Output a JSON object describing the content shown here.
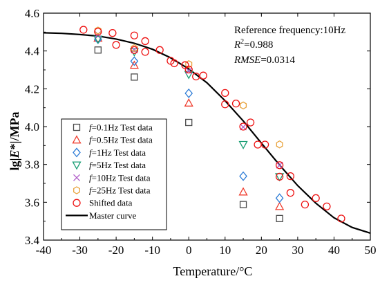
{
  "chart_data": {
    "type": "scatter",
    "xlabel": "Temperature/°C",
    "ylabel_parts": [
      "lg|",
      "E",
      "*|/MPa"
    ],
    "xlim": [
      -40,
      50
    ],
    "ylim": [
      3.4,
      4.6
    ],
    "xticks": [
      -40,
      -30,
      -20,
      -10,
      0,
      10,
      20,
      30,
      40,
      50
    ],
    "yticks": [
      3.4,
      3.6,
      3.8,
      4.0,
      4.2,
      4.4,
      4.6
    ],
    "xtick_labels": [
      "-40",
      "-30",
      "-20",
      "-10",
      "0",
      "10",
      "20",
      "30",
      "40",
      "50"
    ],
    "ytick_labels": [
      "3.4",
      "3.6",
      "3.8",
      "4.0",
      "4.2",
      "4.4",
      "4.6"
    ],
    "annotations": {
      "line1": "Reference frequency:10Hz",
      "line2_pre": "R",
      "line2_sup": "2",
      "line2_post": "=0.988",
      "line3_pre": "RMSE",
      "line3_post": "=0.0314"
    },
    "series": [
      {
        "name_pre": "f",
        "name_post": "=0.1Hz Test data",
        "marker": "square",
        "color": "#4a4a4a",
        "points": [
          [
            -25,
            4.405
          ],
          [
            -15,
            4.262
          ],
          [
            0,
            4.022
          ],
          [
            15,
            3.588
          ],
          [
            25,
            3.514
          ]
        ]
      },
      {
        "name_pre": "f",
        "name_post": "=0.5Hz Test data",
        "marker": "triangle-up",
        "color": "#ef3b2c",
        "points": [
          [
            -25,
            4.468
          ],
          [
            -15,
            4.325
          ],
          [
            0,
            4.125
          ],
          [
            15,
            3.655
          ],
          [
            25,
            3.578
          ]
        ]
      },
      {
        "name_pre": "f",
        "name_post": "=1Hz Test data",
        "marker": "diamond",
        "color": "#2b7bd6",
        "points": [
          [
            -25,
            4.462
          ],
          [
            -15,
            4.346
          ],
          [
            0,
            4.176
          ],
          [
            15,
            3.738
          ],
          [
            25,
            3.622
          ]
        ]
      },
      {
        "name_pre": "f",
        "name_post": "=5Hz Test data",
        "marker": "triangle-down",
        "color": "#1a9e74",
        "points": [
          [
            -25,
            4.462
          ],
          [
            -15,
            4.395
          ],
          [
            0,
            4.275
          ],
          [
            15,
            3.905
          ],
          [
            25,
            3.735
          ]
        ]
      },
      {
        "name_pre": "f",
        "name_post": "=10Hz Test data",
        "marker": "x",
        "color": "#b05cc9",
        "points": [
          [
            -25,
            4.488
          ],
          [
            -15,
            4.405
          ],
          [
            0,
            4.295
          ],
          [
            15,
            3.998
          ],
          [
            25,
            3.796
          ]
        ]
      },
      {
        "name_pre": "f",
        "name_post": "=25Hz Test data",
        "marker": "hexagon",
        "color": "#e8a23a",
        "points": [
          [
            -25,
            4.508
          ],
          [
            -15,
            4.415
          ],
          [
            0,
            4.33
          ],
          [
            15,
            4.112
          ],
          [
            25,
            3.906
          ]
        ]
      },
      {
        "name_pre": "",
        "name_post": "Shifted data",
        "marker": "circle",
        "color": "#ee1111",
        "points": [
          [
            -29,
            4.512
          ],
          [
            -25,
            4.502
          ],
          [
            -21,
            4.495
          ],
          [
            -20,
            4.432
          ],
          [
            -15,
            4.482
          ],
          [
            -15,
            4.405
          ],
          [
            -12,
            4.452
          ],
          [
            -12,
            4.395
          ],
          [
            -8,
            4.405
          ],
          [
            -5,
            4.348
          ],
          [
            -4,
            4.335
          ],
          [
            -1,
            4.325
          ],
          [
            0,
            4.302
          ],
          [
            2,
            4.265
          ],
          [
            4,
            4.27
          ],
          [
            10,
            4.178
          ],
          [
            10,
            4.118
          ],
          [
            13,
            4.122
          ],
          [
            15,
            4.0
          ],
          [
            17,
            4.022
          ],
          [
            19,
            3.905
          ],
          [
            21,
            3.905
          ],
          [
            25,
            3.796
          ],
          [
            25,
            3.735
          ],
          [
            28,
            3.738
          ],
          [
            28,
            3.65
          ],
          [
            32,
            3.588
          ],
          [
            35,
            3.622
          ],
          [
            38,
            3.578
          ],
          [
            42,
            3.514
          ]
        ]
      }
    ],
    "master_curve": {
      "name": "Master curve",
      "points": [
        [
          -40,
          4.496
        ],
        [
          -35,
          4.493
        ],
        [
          -30,
          4.487
        ],
        [
          -25,
          4.479
        ],
        [
          -20,
          4.463
        ],
        [
          -15,
          4.441
        ],
        [
          -10,
          4.409
        ],
        [
          -5,
          4.364
        ],
        [
          0,
          4.305
        ],
        [
          5,
          4.232
        ],
        [
          10,
          4.137
        ],
        [
          15,
          4.03
        ],
        [
          20,
          3.913
        ],
        [
          25,
          3.797
        ],
        [
          30,
          3.688
        ],
        [
          35,
          3.595
        ],
        [
          40,
          3.518
        ],
        [
          45,
          3.467
        ],
        [
          50,
          3.437
        ]
      ]
    }
  }
}
